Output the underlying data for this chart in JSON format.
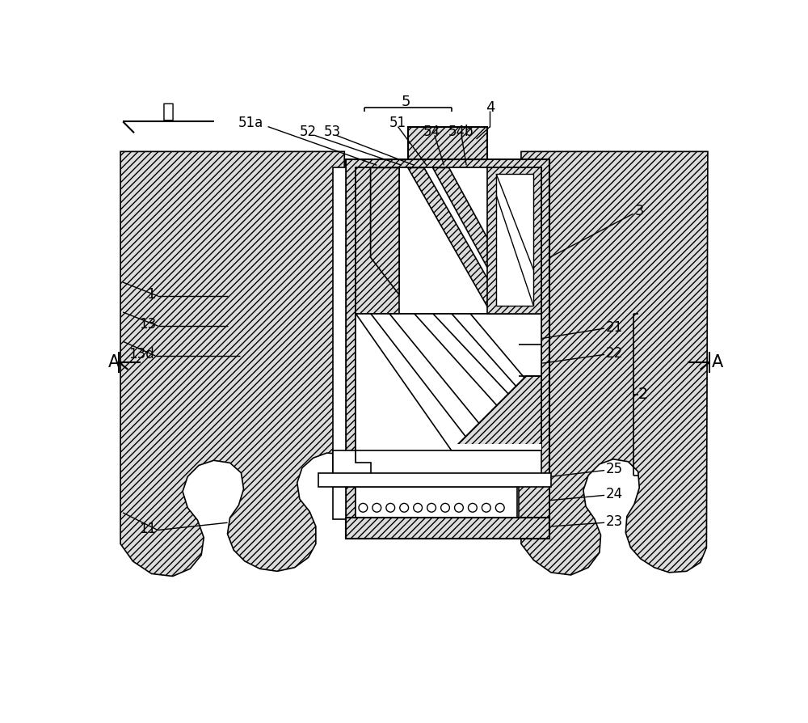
{
  "bg": "#ffffff",
  "lc": "#000000",
  "hatch": "////",
  "fig_w": 10.0,
  "fig_h": 8.94,
  "dpi": 100,
  "labels": {
    "qian": "前",
    "A": "A",
    "n1": "1",
    "n2": "2",
    "n3": "3",
    "n4": "4",
    "n5": "5",
    "n11": "11",
    "n13": "13",
    "n13d": "13d",
    "n21": "21",
    "n22": "22",
    "n23": "23",
    "n24": "24",
    "n25": "25",
    "n51": "51",
    "n51a": "51a",
    "n52": "52",
    "n53": "53",
    "n54": "54",
    "n54b": "54b"
  }
}
